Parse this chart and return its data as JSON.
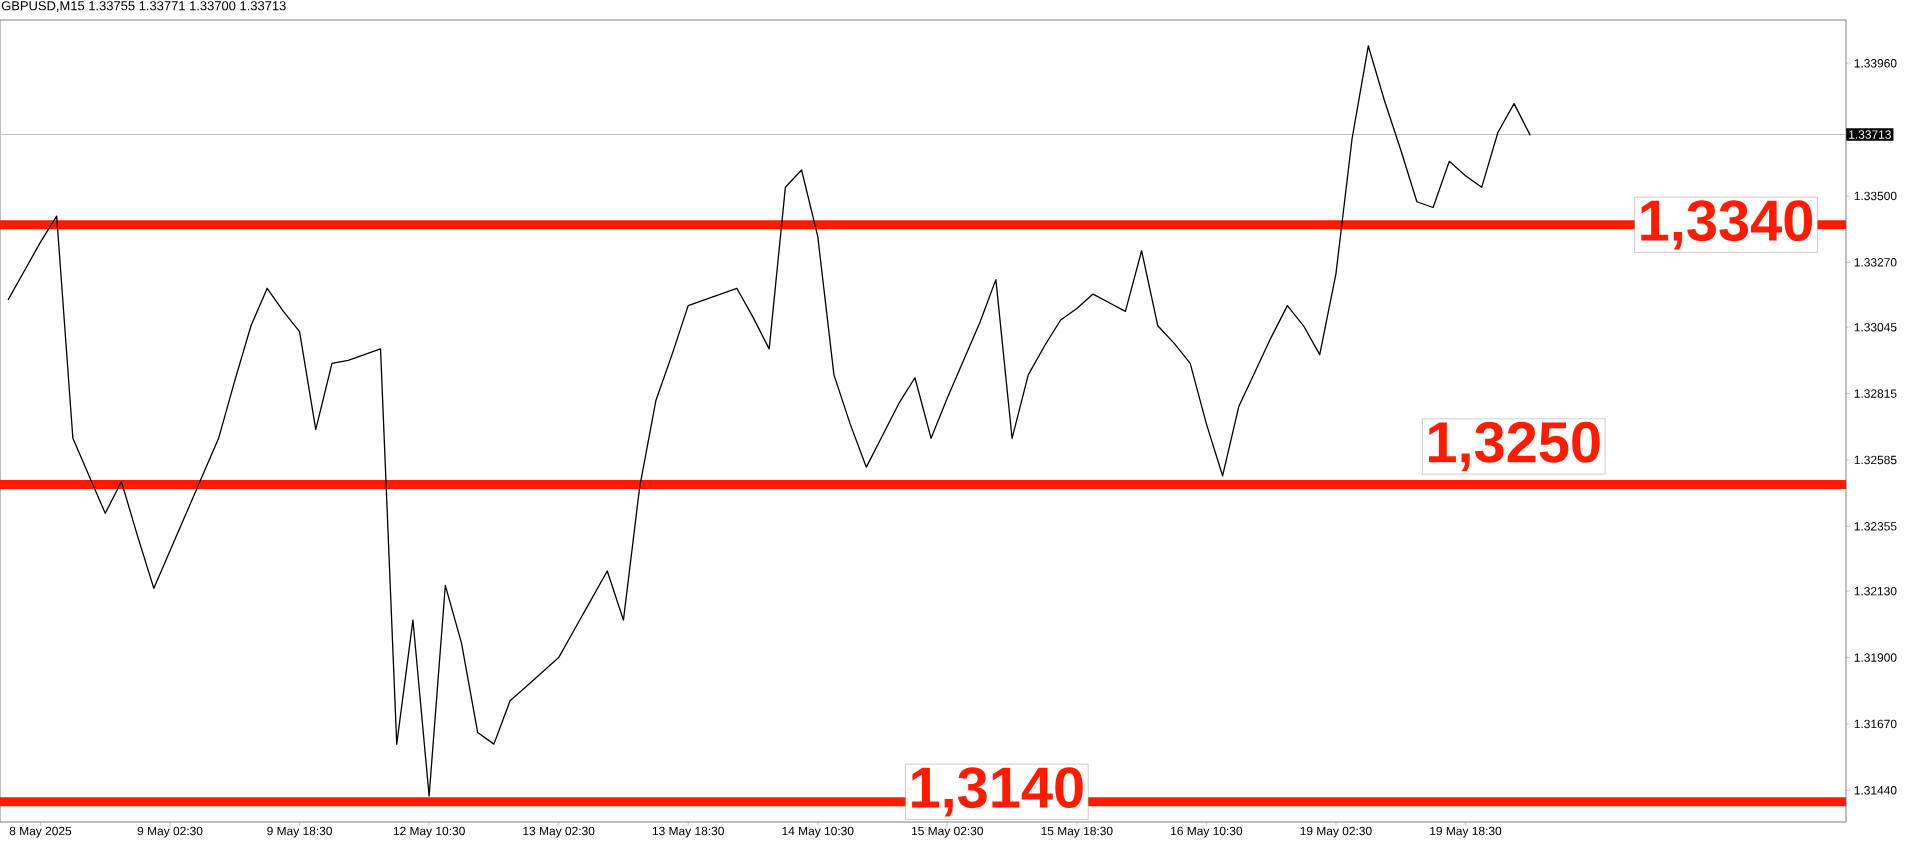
{
  "chart_data": {
    "type": "line",
    "title": "GBPUSD,M15  1.33755 1.33771 1.33700 1.33713",
    "color": "#000000",
    "marker": "none",
    "line_style": "solid",
    "categories": [
      null,
      null,
      "8 May 2025",
      null,
      null,
      null,
      null,
      null,
      null,
      null,
      "9 May 02:30",
      null,
      null,
      null,
      null,
      null,
      null,
      null,
      "9 May 18:30",
      null,
      null,
      null,
      null,
      null,
      null,
      null,
      "12 May 10:30",
      null,
      null,
      null,
      null,
      null,
      null,
      null,
      "13 May 02:30",
      null,
      null,
      null,
      null,
      null,
      null,
      null,
      "13 May 18:30",
      null,
      null,
      null,
      null,
      null,
      null,
      null,
      "14 May 10:30",
      null,
      null,
      null,
      null,
      null,
      null,
      null,
      "15 May 02:30",
      null,
      null,
      null,
      null,
      null,
      null,
      null,
      "15 May 18:30",
      null,
      null,
      null,
      null,
      null,
      null,
      null,
      "16 May 10:30",
      null,
      null,
      null,
      null,
      null,
      null,
      null,
      "19 May 02:30",
      null,
      null,
      null,
      null,
      null,
      null,
      null,
      "19 May 18:30",
      null,
      null,
      null,
      null,
      null,
      null,
      null,
      null,
      null,
      null,
      null,
      null,
      null,
      null,
      null,
      null,
      null,
      null,
      null,
      null,
      null,
      null,
      null
    ],
    "values": [
      1.3314,
      1.3324,
      1.3334,
      1.3343,
      1.3266,
      1.3253,
      1.324,
      1.3251,
      1.3232,
      1.3214,
      1.3227,
      1.324,
      1.3253,
      1.3266,
      1.3286,
      1.3305,
      1.3318,
      1.331,
      1.3303,
      1.3269,
      1.3292,
      1.3293,
      1.3295,
      1.3297,
      1.316,
      1.3203,
      1.3142,
      1.3215,
      1.3195,
      1.3164,
      1.316,
      1.3175,
      1.318,
      1.3185,
      1.319,
      1.32,
      1.321,
      1.322,
      1.3203,
      1.3249,
      1.3279,
      1.3295,
      1.3312,
      1.3314,
      1.3316,
      1.3318,
      1.3308,
      1.3297,
      1.3353,
      1.3359,
      1.3336,
      1.3288,
      1.3271,
      1.3256,
      1.3267,
      1.3278,
      1.3287,
      1.3266,
      1.328,
      1.3293,
      1.3306,
      1.3321,
      1.3266,
      1.3288,
      1.3298,
      1.3307,
      1.3311,
      1.3316,
      1.3313,
      1.331,
      1.3331,
      1.3305,
      1.3299,
      1.3292,
      1.3271,
      1.3253,
      1.3277,
      1.3289,
      1.3301,
      1.3312,
      1.3305,
      1.3295,
      1.3323,
      1.337,
      1.3402,
      1.3383,
      1.3366,
      1.3348,
      1.3346,
      1.3362,
      1.3357,
      1.3353,
      1.3372,
      1.3382,
      1.3371,
      null,
      null,
      null,
      null,
      null,
      null,
      null,
      null,
      null,
      null,
      null,
      null,
      null,
      null,
      null,
      null,
      null,
      null,
      null
    ],
    "ylim": [
      1.3133,
      1.3411
    ],
    "yticks": [
      {
        "value": 1.3144,
        "label": "1.31440"
      },
      {
        "value": 1.3167,
        "label": "1.31670"
      },
      {
        "value": 1.319,
        "label": "1.31900"
      },
      {
        "value": 1.3213,
        "label": "1.32130"
      },
      {
        "value": 1.32355,
        "label": "1.32355"
      },
      {
        "value": 1.32585,
        "label": "1.32585"
      },
      {
        "value": 1.32815,
        "label": "1.32815"
      },
      {
        "value": 1.33045,
        "label": "1.33045"
      },
      {
        "value": 1.3327,
        "label": "1.33270"
      },
      {
        "value": 1.335,
        "label": "1.33500"
      },
      {
        "value": 1.3396,
        "label": "1.33960"
      }
    ],
    "ref_lines": [
      {
        "axis": "y",
        "value": 1.314,
        "label": "1,3140",
        "color": "#ff1a00"
      },
      {
        "axis": "y",
        "value": 1.325,
        "label": "1,3250",
        "color": "#ff1a00"
      },
      {
        "axis": "y",
        "value": 1.334,
        "label": "1,3340",
        "color": "#ff1a00"
      },
      {
        "axis": "y",
        "value": 1.33713,
        "label": "1.33713",
        "color": "#c0c0c0"
      }
    ]
  }
}
